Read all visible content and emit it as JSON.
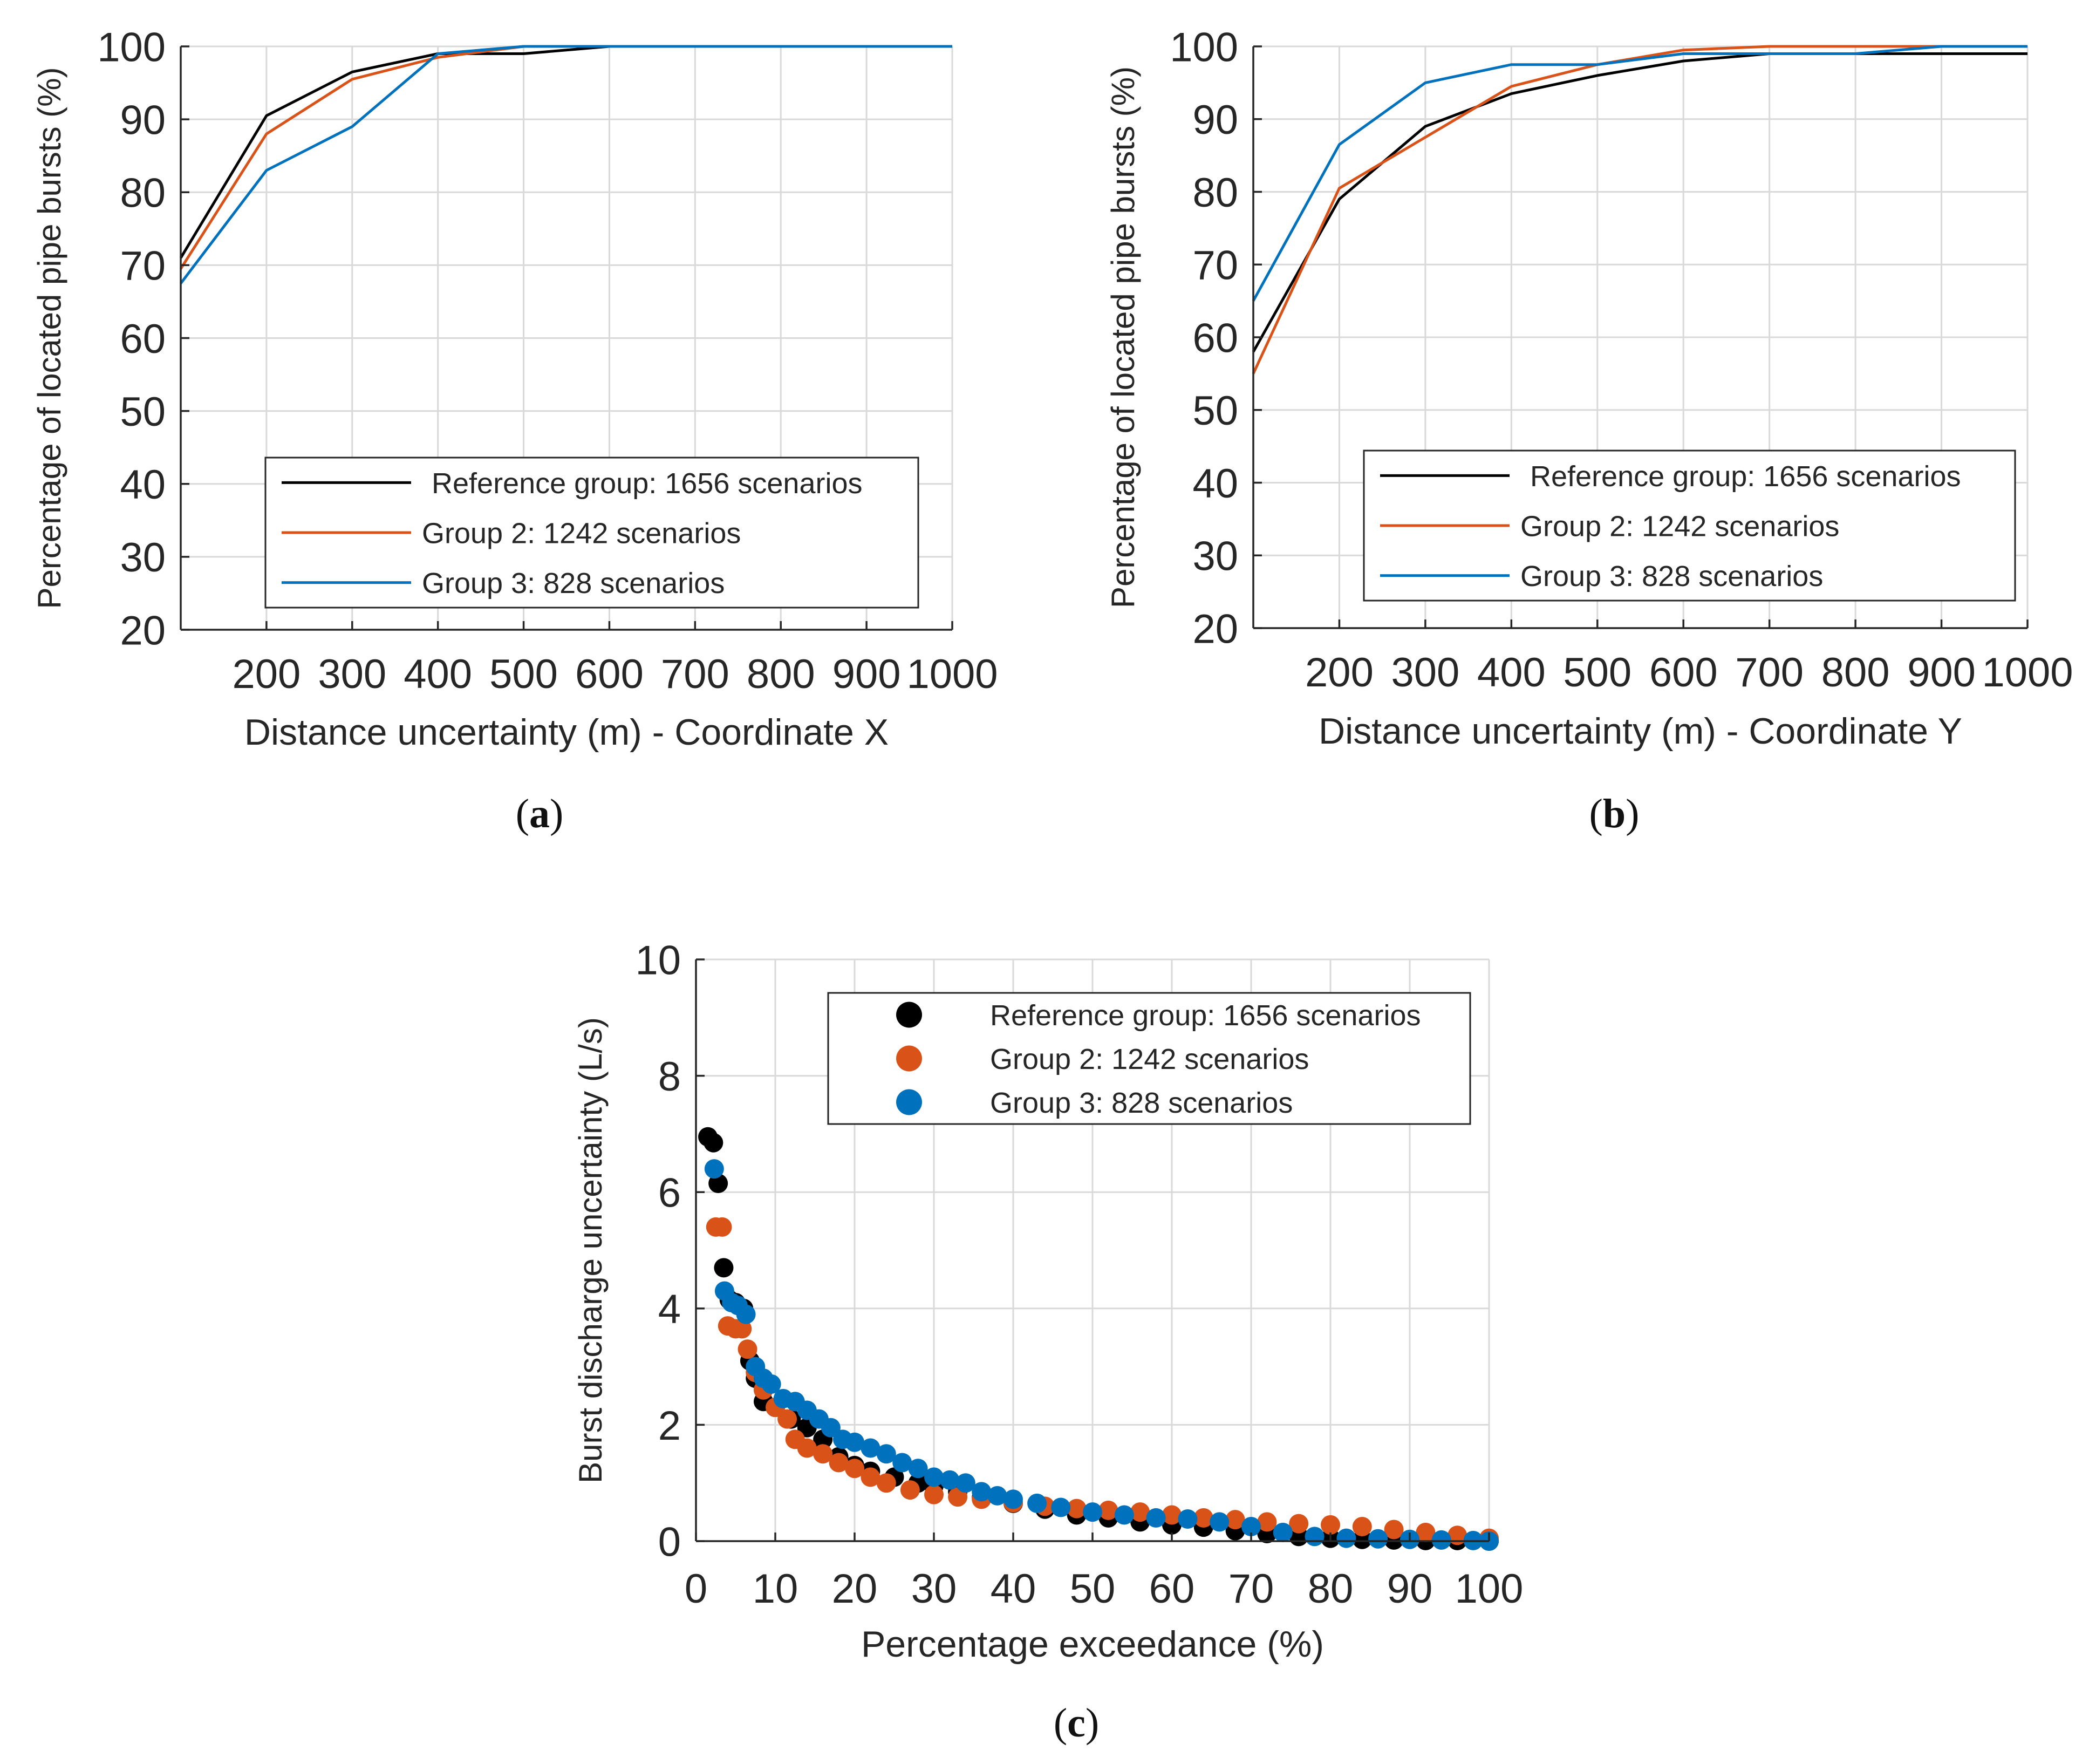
{
  "colors": {
    "reference": "#000000",
    "group2": "#D95319",
    "group3": "#0072BD",
    "grid": "#d9d9d9",
    "axis": "#262626"
  },
  "panels": {
    "a": {
      "label": "a"
    },
    "b": {
      "label": "b"
    },
    "c": {
      "label": "c"
    }
  },
  "chart_data": [
    {
      "id": "a",
      "type": "line",
      "xlabel": "Distance uncertainty (m) - Coordinate X",
      "ylabel": "Percentage of located pipe bursts (%)",
      "xlim": [
        100,
        1000
      ],
      "ylim": [
        20,
        100
      ],
      "xticks": [
        200,
        300,
        400,
        500,
        600,
        700,
        800,
        900,
        1000
      ],
      "xtick_labels": [
        "200",
        "300",
        "400",
        "500",
        "600",
        "700",
        "800",
        "900",
        "1000"
      ],
      "yticks": [
        20,
        30,
        40,
        50,
        60,
        70,
        80,
        90,
        100
      ],
      "ytick_labels": [
        "20",
        "30",
        "40",
        "50",
        "60",
        "70",
        "80",
        "90",
        "100"
      ],
      "grid": true,
      "legend_position": "bottom-right",
      "x": [
        100,
        200,
        300,
        400,
        500,
        600,
        700,
        800,
        900,
        1000
      ],
      "series": [
        {
          "name": "Reference group: 1656 scenarios",
          "color_key": "reference",
          "values": [
            71,
            90.5,
            96.5,
            99,
            99,
            100,
            100,
            100,
            100,
            100
          ]
        },
        {
          "name": "Group 2: 1242 scenarios",
          "color_key": "group2",
          "values": [
            69.5,
            88,
            95.5,
            98.5,
            100,
            100,
            100,
            100,
            100,
            100
          ]
        },
        {
          "name": "Group 3: 828 scenarios",
          "color_key": "group3",
          "values": [
            67.5,
            83,
            89,
            99,
            100,
            100,
            100,
            100,
            100,
            100
          ]
        }
      ]
    },
    {
      "id": "b",
      "type": "line",
      "xlabel": "Distance uncertainty (m) - Coordinate Y",
      "ylabel": "Percentage of located pipe bursts (%)",
      "xlim": [
        100,
        1000
      ],
      "ylim": [
        20,
        100
      ],
      "xticks": [
        200,
        300,
        400,
        500,
        600,
        700,
        800,
        900,
        1000
      ],
      "xtick_labels": [
        "200",
        "300",
        "400",
        "500",
        "600",
        "700",
        "800",
        "900",
        "1000"
      ],
      "yticks": [
        20,
        30,
        40,
        50,
        60,
        70,
        80,
        90,
        100
      ],
      "ytick_labels": [
        "20",
        "30",
        "40",
        "50",
        "60",
        "70",
        "80",
        "90",
        "100"
      ],
      "grid": true,
      "legend_position": "bottom-right",
      "x": [
        100,
        200,
        300,
        400,
        500,
        600,
        700,
        800,
        900,
        1000
      ],
      "series": [
        {
          "name": "Reference group: 1656 scenarios",
          "color_key": "reference",
          "values": [
            58,
            79,
            89,
            93.5,
            96,
            98,
            99,
            99,
            99,
            99
          ]
        },
        {
          "name": "Group 2: 1242 scenarios",
          "color_key": "group2",
          "values": [
            55,
            80.5,
            87.5,
            94.5,
            97.5,
            99.5,
            100,
            100,
            100,
            100
          ]
        },
        {
          "name": "Group 3: 828 scenarios",
          "color_key": "group3",
          "values": [
            65,
            86.5,
            95,
            97.5,
            97.5,
            99,
            99,
            99,
            100,
            100
          ]
        }
      ]
    },
    {
      "id": "c",
      "type": "scatter",
      "xlabel": "Percentage exceedance (%)",
      "ylabel": "Burst discharge uncertainty (L/s)",
      "xlim": [
        0,
        100
      ],
      "ylim": [
        0,
        10
      ],
      "xticks": [
        0,
        10,
        20,
        30,
        40,
        50,
        60,
        70,
        80,
        90,
        100
      ],
      "xtick_labels": [
        "0",
        "10",
        "20",
        "30",
        "40",
        "50",
        "60",
        "70",
        "80",
        "90",
        "100"
      ],
      "yticks": [
        0,
        2,
        4,
        6,
        8,
        10
      ],
      "ytick_labels": [
        "0",
        "2",
        "4",
        "6",
        "8",
        "10"
      ],
      "grid": true,
      "legend_position": "top-right",
      "series": [
        {
          "name": "Reference group: 1656 scenarios",
          "color_key": "reference",
          "points": [
            [
              1.5,
              6.95
            ],
            [
              2.2,
              6.85
            ],
            [
              2.8,
              6.15
            ],
            [
              3.5,
              4.7
            ],
            [
              4.2,
              4.15
            ],
            [
              5,
              4.1
            ],
            [
              6,
              4
            ],
            [
              6.8,
              3.1
            ],
            [
              7.5,
              2.8
            ],
            [
              8.5,
              2.4
            ],
            [
              10,
              2.3
            ],
            [
              12,
              2.1
            ],
            [
              14,
              1.95
            ],
            [
              16,
              1.75
            ],
            [
              18,
              1.45
            ],
            [
              20,
              1.3
            ],
            [
              22,
              1.2
            ],
            [
              25,
              1.1
            ],
            [
              28,
              1.0
            ],
            [
              30,
              0.95
            ],
            [
              33,
              0.85
            ],
            [
              36,
              0.75
            ],
            [
              40,
              0.65
            ],
            [
              44,
              0.55
            ],
            [
              48,
              0.45
            ],
            [
              52,
              0.4
            ],
            [
              56,
              0.33
            ],
            [
              60,
              0.28
            ],
            [
              64,
              0.24
            ],
            [
              68,
              0.18
            ],
            [
              72,
              0.13
            ],
            [
              76,
              0.08
            ],
            [
              80,
              0.05
            ],
            [
              84,
              0.03
            ],
            [
              88,
              0.02
            ],
            [
              92,
              0.01
            ],
            [
              96,
              0.01
            ],
            [
              100,
              0.0
            ]
          ]
        },
        {
          "name": "Group 2: 1242 scenarios",
          "color_key": "group2",
          "points": [
            [
              2.5,
              5.4
            ],
            [
              3.3,
              5.4
            ],
            [
              4,
              3.7
            ],
            [
              5,
              3.65
            ],
            [
              5.8,
              3.65
            ],
            [
              6.5,
              3.3
            ],
            [
              7.5,
              2.9
            ],
            [
              8.5,
              2.6
            ],
            [
              10,
              2.3
            ],
            [
              11.5,
              2.1
            ],
            [
              12.5,
              1.75
            ],
            [
              14,
              1.6
            ],
            [
              16,
              1.5
            ],
            [
              18,
              1.35
            ],
            [
              20,
              1.25
            ],
            [
              22,
              1.1
            ],
            [
              24,
              1.0
            ],
            [
              27,
              0.88
            ],
            [
              30,
              0.8
            ],
            [
              33,
              0.76
            ],
            [
              36,
              0.72
            ],
            [
              40,
              0.66
            ],
            [
              44,
              0.6
            ],
            [
              48,
              0.56
            ],
            [
              52,
              0.53
            ],
            [
              56,
              0.5
            ],
            [
              60,
              0.45
            ],
            [
              64,
              0.4
            ],
            [
              68,
              0.37
            ],
            [
              72,
              0.33
            ],
            [
              76,
              0.3
            ],
            [
              80,
              0.28
            ],
            [
              84,
              0.25
            ],
            [
              88,
              0.2
            ],
            [
              92,
              0.15
            ],
            [
              96,
              0.1
            ],
            [
              100,
              0.05
            ]
          ]
        },
        {
          "name": "Group 3: 828 scenarios",
          "color_key": "group3",
          "points": [
            [
              2.3,
              6.4
            ],
            [
              3.6,
              4.3
            ],
            [
              4.5,
              4.1
            ],
            [
              5.3,
              4.05
            ],
            [
              6.3,
              3.9
            ],
            [
              7.5,
              3.0
            ],
            [
              8.5,
              2.8
            ],
            [
              9.5,
              2.7
            ],
            [
              11,
              2.45
            ],
            [
              12.5,
              2.4
            ],
            [
              14,
              2.25
            ],
            [
              15.5,
              2.1
            ],
            [
              17,
              1.95
            ],
            [
              18.5,
              1.75
            ],
            [
              20,
              1.7
            ],
            [
              22,
              1.6
            ],
            [
              24,
              1.5
            ],
            [
              26,
              1.35
            ],
            [
              28,
              1.25
            ],
            [
              30,
              1.1
            ],
            [
              32,
              1.05
            ],
            [
              34,
              1.0
            ],
            [
              36,
              0.85
            ],
            [
              38,
              0.78
            ],
            [
              40,
              0.72
            ],
            [
              43,
              0.65
            ],
            [
              46,
              0.58
            ],
            [
              50,
              0.5
            ],
            [
              54,
              0.45
            ],
            [
              58,
              0.4
            ],
            [
              62,
              0.38
            ],
            [
              66,
              0.33
            ],
            [
              70,
              0.25
            ],
            [
              74,
              0.15
            ],
            [
              78,
              0.08
            ],
            [
              82,
              0.05
            ],
            [
              86,
              0.04
            ],
            [
              90,
              0.03
            ],
            [
              94,
              0.02
            ],
            [
              98,
              0.01
            ],
            [
              100,
              0.0
            ]
          ]
        }
      ]
    }
  ]
}
